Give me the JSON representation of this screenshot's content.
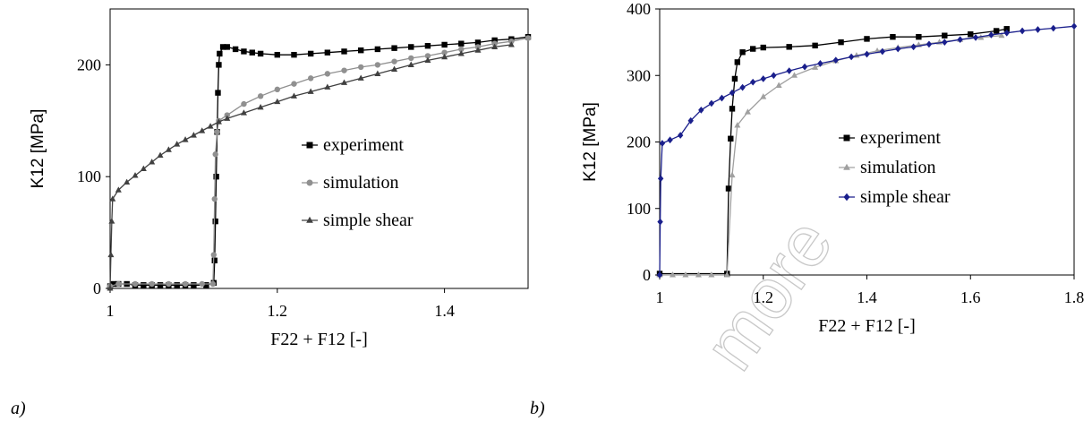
{
  "watermark": "more",
  "chart_data": [
    {
      "type": "scatter",
      "panel_label": "a)",
      "xlabel": "F22 + F12 [-]",
      "ylabel": "K12 [MPa]",
      "xlim": [
        1.0,
        1.5
      ],
      "ylim": [
        0,
        250
      ],
      "xticks": [
        {
          "value": 1.0,
          "label": "1"
        },
        {
          "value": 1.2,
          "label": "1.2"
        },
        {
          "value": 1.4,
          "label": "1.4"
        }
      ],
      "yticks": [
        {
          "value": 0,
          "label": "0"
        },
        {
          "value": 100,
          "label": "100"
        },
        {
          "value": 200,
          "label": "200"
        }
      ],
      "grid": false,
      "legend_position": "center-right",
      "series": [
        {
          "name": "experiment",
          "marker": "square",
          "color": "#000000",
          "points": [
            [
              1.0,
              2
            ],
            [
              1.004,
              4
            ],
            [
              1.01,
              4
            ],
            [
              1.02,
              4
            ],
            [
              1.03,
              3
            ],
            [
              1.04,
              3
            ],
            [
              1.05,
              3
            ],
            [
              1.06,
              3
            ],
            [
              1.07,
              3
            ],
            [
              1.08,
              3
            ],
            [
              1.09,
              3
            ],
            [
              1.1,
              3
            ],
            [
              1.115,
              3
            ],
            [
              1.124,
              5
            ],
            [
              1.125,
              25
            ],
            [
              1.126,
              60
            ],
            [
              1.127,
              100
            ],
            [
              1.128,
              140
            ],
            [
              1.129,
              175
            ],
            [
              1.13,
              200
            ],
            [
              1.131,
              210
            ],
            [
              1.135,
              216
            ],
            [
              1.14,
              216
            ],
            [
              1.15,
              214
            ],
            [
              1.16,
              212
            ],
            [
              1.17,
              211
            ],
            [
              1.18,
              210
            ],
            [
              1.2,
              209
            ],
            [
              1.22,
              209
            ],
            [
              1.24,
              210
            ],
            [
              1.26,
              211
            ],
            [
              1.28,
              212
            ],
            [
              1.3,
              213
            ],
            [
              1.32,
              214
            ],
            [
              1.34,
              215
            ],
            [
              1.36,
              216
            ],
            [
              1.38,
              217
            ],
            [
              1.4,
              218
            ],
            [
              1.42,
              219
            ],
            [
              1.44,
              220
            ],
            [
              1.46,
              222
            ],
            [
              1.48,
              223
            ],
            [
              1.5,
              225
            ]
          ]
        },
        {
          "name": "simulation",
          "marker": "circle",
          "color": "#909090",
          "points": [
            [
              1.0,
              2
            ],
            [
              1.01,
              4
            ],
            [
              1.03,
              4
            ],
            [
              1.05,
              4
            ],
            [
              1.07,
              4
            ],
            [
              1.09,
              4
            ],
            [
              1.11,
              4
            ],
            [
              1.123,
              4
            ],
            [
              1.124,
              30
            ],
            [
              1.125,
              80
            ],
            [
              1.126,
              120
            ],
            [
              1.128,
              140
            ],
            [
              1.13,
              150
            ],
            [
              1.14,
              155
            ],
            [
              1.16,
              165
            ],
            [
              1.18,
              172
            ],
            [
              1.2,
              178
            ],
            [
              1.22,
              183
            ],
            [
              1.24,
              188
            ],
            [
              1.26,
              192
            ],
            [
              1.28,
              195
            ],
            [
              1.3,
              198
            ],
            [
              1.32,
              200
            ],
            [
              1.34,
              203
            ],
            [
              1.36,
              206
            ],
            [
              1.38,
              208
            ],
            [
              1.4,
              211
            ],
            [
              1.42,
              214
            ],
            [
              1.44,
              216
            ],
            [
              1.46,
              219
            ],
            [
              1.48,
              221
            ],
            [
              1.5,
              224
            ]
          ]
        },
        {
          "name": "simple shear",
          "marker": "triangle",
          "color": "#404040",
          "points": [
            [
              1.0,
              0
            ],
            [
              1.001,
              30
            ],
            [
              1.002,
              60
            ],
            [
              1.003,
              80
            ],
            [
              1.01,
              88
            ],
            [
              1.02,
              95
            ],
            [
              1.03,
              101
            ],
            [
              1.04,
              107
            ],
            [
              1.05,
              113
            ],
            [
              1.06,
              119
            ],
            [
              1.07,
              124
            ],
            [
              1.08,
              129
            ],
            [
              1.09,
              133
            ],
            [
              1.1,
              137
            ],
            [
              1.11,
              141
            ],
            [
              1.12,
              145
            ],
            [
              1.13,
              149
            ],
            [
              1.14,
              152
            ],
            [
              1.16,
              157
            ],
            [
              1.18,
              162
            ],
            [
              1.2,
              167
            ],
            [
              1.22,
              172
            ],
            [
              1.24,
              176
            ],
            [
              1.26,
              180
            ],
            [
              1.28,
              184
            ],
            [
              1.3,
              188
            ],
            [
              1.32,
              192
            ],
            [
              1.34,
              196
            ],
            [
              1.36,
              200
            ],
            [
              1.38,
              204
            ],
            [
              1.4,
              207
            ],
            [
              1.42,
              210
            ],
            [
              1.44,
              213
            ],
            [
              1.46,
              216
            ],
            [
              1.48,
              218
            ]
          ]
        }
      ]
    },
    {
      "type": "line",
      "panel_label": "b)",
      "xlabel": "F22 + F12 [-]",
      "ylabel": "K12 [MPa]",
      "xlim": [
        1.0,
        1.8
      ],
      "ylim": [
        0,
        400
      ],
      "xticks": [
        {
          "value": 1.0,
          "label": "1"
        },
        {
          "value": 1.2,
          "label": "1.2"
        },
        {
          "value": 1.4,
          "label": "1.4"
        },
        {
          "value": 1.6,
          "label": "1.6"
        },
        {
          "value": 1.8,
          "label": "1.8"
        }
      ],
      "yticks": [
        {
          "value": 0,
          "label": "0"
        },
        {
          "value": 100,
          "label": "100"
        },
        {
          "value": 200,
          "label": "200"
        },
        {
          "value": 300,
          "label": "300"
        },
        {
          "value": 400,
          "label": "400"
        }
      ],
      "grid": false,
      "legend_position": "center-right",
      "series": [
        {
          "name": "experiment",
          "marker": "square",
          "color": "#000000",
          "points": [
            [
              1.0,
              2
            ],
            [
              1.13,
              2
            ],
            [
              1.133,
              130
            ],
            [
              1.137,
              205
            ],
            [
              1.14,
              250
            ],
            [
              1.145,
              295
            ],
            [
              1.15,
              320
            ],
            [
              1.16,
              335
            ],
            [
              1.18,
              340
            ],
            [
              1.2,
              342
            ],
            [
              1.25,
              343
            ],
            [
              1.3,
              345
            ],
            [
              1.35,
              350
            ],
            [
              1.4,
              355
            ],
            [
              1.45,
              358
            ],
            [
              1.5,
              358
            ],
            [
              1.55,
              360
            ],
            [
              1.6,
              362
            ],
            [
              1.65,
              367
            ],
            [
              1.67,
              370
            ]
          ]
        },
        {
          "name": "simulation",
          "marker": "triangle",
          "color": "#a0a0a0",
          "points": [
            [
              1.0,
              0
            ],
            [
              1.025,
              0
            ],
            [
              1.05,
              0
            ],
            [
              1.075,
              0
            ],
            [
              1.1,
              0
            ],
            [
              1.13,
              0
            ],
            [
              1.14,
              150
            ],
            [
              1.15,
              225
            ],
            [
              1.17,
              245
            ],
            [
              1.2,
              268
            ],
            [
              1.23,
              285
            ],
            [
              1.26,
              300
            ],
            [
              1.3,
              312
            ],
            [
              1.34,
              322
            ],
            [
              1.38,
              330
            ],
            [
              1.42,
              337
            ],
            [
              1.46,
              342
            ],
            [
              1.5,
              346
            ],
            [
              1.54,
              350
            ],
            [
              1.58,
              354
            ],
            [
              1.62,
              357
            ],
            [
              1.66,
              360
            ]
          ]
        },
        {
          "name": "simple shear",
          "marker": "diamond",
          "color": "#1a1f8c",
          "points": [
            [
              1.0,
              0
            ],
            [
              1.001,
              80
            ],
            [
              1.002,
              145
            ],
            [
              1.005,
              198
            ],
            [
              1.02,
              203
            ],
            [
              1.04,
              210
            ],
            [
              1.06,
              232
            ],
            [
              1.08,
              248
            ],
            [
              1.1,
              258
            ],
            [
              1.12,
              266
            ],
            [
              1.14,
              274
            ],
            [
              1.16,
              282
            ],
            [
              1.18,
              290
            ],
            [
              1.2,
              295
            ],
            [
              1.22,
              300
            ],
            [
              1.25,
              307
            ],
            [
              1.28,
              313
            ],
            [
              1.31,
              318
            ],
            [
              1.34,
              323
            ],
            [
              1.37,
              328
            ],
            [
              1.4,
              332
            ],
            [
              1.43,
              336
            ],
            [
              1.46,
              340
            ],
            [
              1.49,
              343
            ],
            [
              1.52,
              347
            ],
            [
              1.55,
              350
            ],
            [
              1.58,
              354
            ],
            [
              1.61,
              357
            ],
            [
              1.64,
              361
            ],
            [
              1.67,
              364
            ],
            [
              1.7,
              367
            ],
            [
              1.73,
              369
            ],
            [
              1.76,
              371
            ],
            [
              1.8,
              374
            ]
          ]
        }
      ]
    }
  ]
}
